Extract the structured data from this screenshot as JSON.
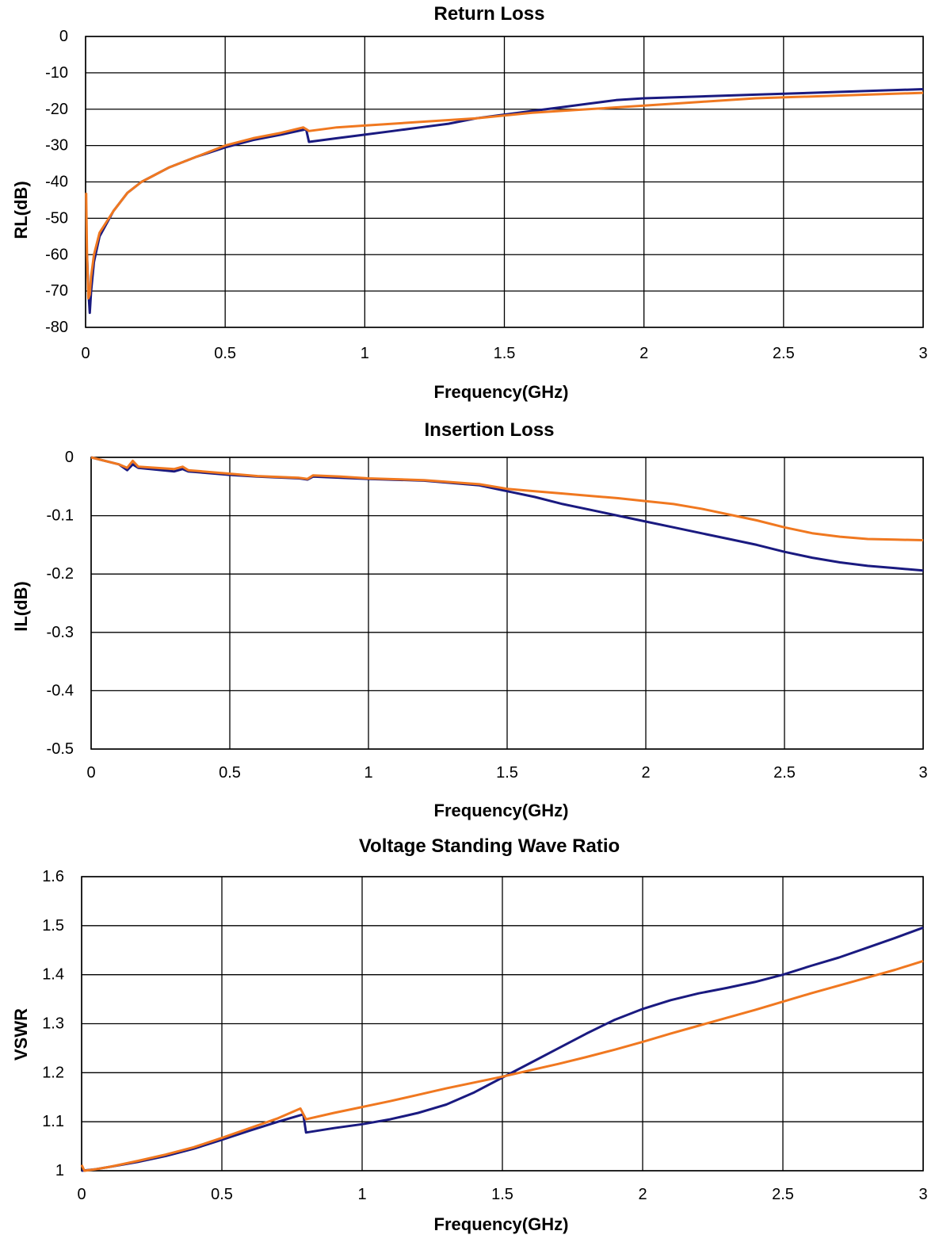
{
  "chart_data": [
    {
      "id": "rl",
      "type": "line",
      "title": "Return Loss",
      "xlabel": "Frequency(GHz)",
      "ylabel": "RL(dB)",
      "xlim": [
        0,
        3
      ],
      "ylim": [
        -80,
        0
      ],
      "xticks": [
        "0",
        "0.5",
        "1",
        "1.5",
        "2",
        "2.5",
        "3"
      ],
      "yticks": [
        "0",
        "-10",
        "-20",
        "-30",
        "-40",
        "-50",
        "-60",
        "-70",
        "-80"
      ],
      "grid": true,
      "colors": [
        "#1a1a80",
        "#f07820"
      ],
      "series": [
        {
          "x": [
            0.005,
            0.01,
            0.015,
            0.02,
            0.03,
            0.05,
            0.1,
            0.15,
            0.2,
            0.3,
            0.4,
            0.5,
            0.6,
            0.7,
            0.79,
            0.8,
            0.9,
            1.0,
            1.1,
            1.2,
            1.3,
            1.4,
            1.5,
            1.6,
            1.7,
            1.8,
            1.9,
            2.0,
            2.2,
            2.4,
            2.6,
            2.8,
            3.0
          ],
          "y": [
            -60,
            -70,
            -76,
            -70,
            -62,
            -55,
            -48,
            -43,
            -40,
            -36,
            -33,
            -30.5,
            -28.5,
            -27,
            -25.5,
            -29,
            -28,
            -27,
            -26,
            -25,
            -24,
            -22.5,
            -21.5,
            -20.5,
            -19.5,
            -18.5,
            -17.5,
            -17,
            -16.5,
            -16,
            -15.5,
            -15,
            -14.5
          ]
        },
        {
          "x": [
            0.002,
            0.005,
            0.01,
            0.015,
            0.02,
            0.03,
            0.05,
            0.1,
            0.15,
            0.2,
            0.3,
            0.4,
            0.5,
            0.6,
            0.7,
            0.78,
            0.8,
            0.9,
            1.0,
            1.2,
            1.4,
            1.6,
            1.8,
            2.0,
            2.2,
            2.4,
            2.6,
            2.8,
            3.0
          ],
          "y": [
            -43,
            -60,
            -72,
            -71,
            -66,
            -60,
            -54,
            -48,
            -43,
            -40,
            -36,
            -33,
            -30,
            -28,
            -26.5,
            -25,
            -26,
            -25,
            -24.5,
            -23.5,
            -22.5,
            -21,
            -20,
            -19,
            -18,
            -17,
            -16.5,
            -16,
            -15.5
          ]
        }
      ]
    },
    {
      "id": "il",
      "type": "line",
      "title": "Insertion Loss",
      "xlabel": "Frequency(GHz)",
      "ylabel": "IL(dB)",
      "xlim": [
        0,
        3
      ],
      "ylim": [
        -0.5,
        0
      ],
      "xticks": [
        "0",
        "0.5",
        "1",
        "1.5",
        "2",
        "2.5",
        "3"
      ],
      "yticks": [
        "0",
        "-0.1",
        "-0.2",
        "-0.3",
        "-0.4",
        "-0.5"
      ],
      "grid": true,
      "colors": [
        "#1a1a80",
        "#f07820"
      ],
      "series": [
        {
          "x": [
            0,
            0.1,
            0.13,
            0.15,
            0.17,
            0.3,
            0.33,
            0.35,
            0.5,
            0.6,
            0.75,
            0.78,
            0.8,
            0.9,
            1.0,
            1.2,
            1.4,
            1.5,
            1.6,
            1.7,
            1.8,
            1.9,
            2.0,
            2.1,
            2.2,
            2.3,
            2.4,
            2.5,
            2.6,
            2.7,
            2.8,
            2.9,
            3.0
          ],
          "y": [
            0,
            -0.012,
            -0.022,
            -0.012,
            -0.018,
            -0.024,
            -0.02,
            -0.024,
            -0.03,
            -0.033,
            -0.036,
            -0.038,
            -0.033,
            -0.035,
            -0.037,
            -0.04,
            -0.048,
            -0.058,
            -0.068,
            -0.08,
            -0.09,
            -0.1,
            -0.11,
            -0.12,
            -0.13,
            -0.14,
            -0.15,
            -0.162,
            -0.172,
            -0.18,
            -0.186,
            -0.19,
            -0.194
          ]
        },
        {
          "x": [
            0,
            0.1,
            0.13,
            0.15,
            0.17,
            0.3,
            0.33,
            0.35,
            0.5,
            0.6,
            0.75,
            0.78,
            0.8,
            0.9,
            1.0,
            1.2,
            1.4,
            1.5,
            1.6,
            1.7,
            1.8,
            1.9,
            2.0,
            2.1,
            2.2,
            2.3,
            2.4,
            2.5,
            2.6,
            2.7,
            2.8,
            2.9,
            3.0
          ],
          "y": [
            0,
            -0.012,
            -0.018,
            -0.006,
            -0.016,
            -0.02,
            -0.016,
            -0.022,
            -0.028,
            -0.032,
            -0.035,
            -0.037,
            -0.031,
            -0.033,
            -0.036,
            -0.039,
            -0.046,
            -0.054,
            -0.058,
            -0.062,
            -0.066,
            -0.07,
            -0.075,
            -0.08,
            -0.088,
            -0.098,
            -0.108,
            -0.12,
            -0.13,
            -0.136,
            -0.14,
            -0.141,
            -0.142
          ]
        }
      ]
    },
    {
      "id": "vswr",
      "type": "line",
      "title": "Voltage Standing Wave Ratio",
      "xlabel": "Frequency(GHz)",
      "ylabel": "VSWR",
      "xlim": [
        0,
        3
      ],
      "ylim": [
        1,
        1.6
      ],
      "xticks": [
        "0",
        "0.5",
        "1",
        "1.5",
        "2",
        "2.5",
        "3"
      ],
      "yticks": [
        "1.6",
        "1.5",
        "1.4",
        "1.3",
        "1.2",
        "1.1",
        "1"
      ],
      "grid": true,
      "colors": [
        "#1a1a80",
        "#f07820"
      ],
      "series": [
        {
          "x": [
            0,
            0.05,
            0.1,
            0.2,
            0.3,
            0.4,
            0.5,
            0.6,
            0.7,
            0.79,
            0.8,
            0.9,
            1.0,
            1.1,
            1.2,
            1.3,
            1.4,
            1.5,
            1.6,
            1.7,
            1.8,
            1.9,
            2.0,
            2.1,
            2.2,
            2.3,
            2.4,
            2.5,
            2.6,
            2.7,
            2.8,
            2.9,
            3.0
          ],
          "y": [
            1.0,
            1.003,
            1.008,
            1.018,
            1.03,
            1.045,
            1.063,
            1.082,
            1.1,
            1.115,
            1.078,
            1.087,
            1.095,
            1.105,
            1.118,
            1.135,
            1.16,
            1.19,
            1.22,
            1.25,
            1.28,
            1.308,
            1.33,
            1.348,
            1.362,
            1.373,
            1.385,
            1.4,
            1.418,
            1.435,
            1.455,
            1.475,
            1.496
          ]
        },
        {
          "x": [
            0,
            0.01,
            0.05,
            0.1,
            0.2,
            0.3,
            0.4,
            0.5,
            0.6,
            0.7,
            0.78,
            0.8,
            0.9,
            1.0,
            1.1,
            1.2,
            1.3,
            1.4,
            1.5,
            1.6,
            1.7,
            1.8,
            1.9,
            2.0,
            2.1,
            2.2,
            2.3,
            2.4,
            2.5,
            2.6,
            2.7,
            2.8,
            2.9,
            3.0
          ],
          "y": [
            1.012,
            1.0,
            1.003,
            1.008,
            1.02,
            1.033,
            1.048,
            1.067,
            1.087,
            1.107,
            1.127,
            1.105,
            1.118,
            1.13,
            1.142,
            1.155,
            1.168,
            1.18,
            1.192,
            1.205,
            1.218,
            1.232,
            1.247,
            1.263,
            1.28,
            1.296,
            1.312,
            1.328,
            1.345,
            1.362,
            1.378,
            1.394,
            1.41,
            1.428
          ]
        }
      ]
    }
  ]
}
